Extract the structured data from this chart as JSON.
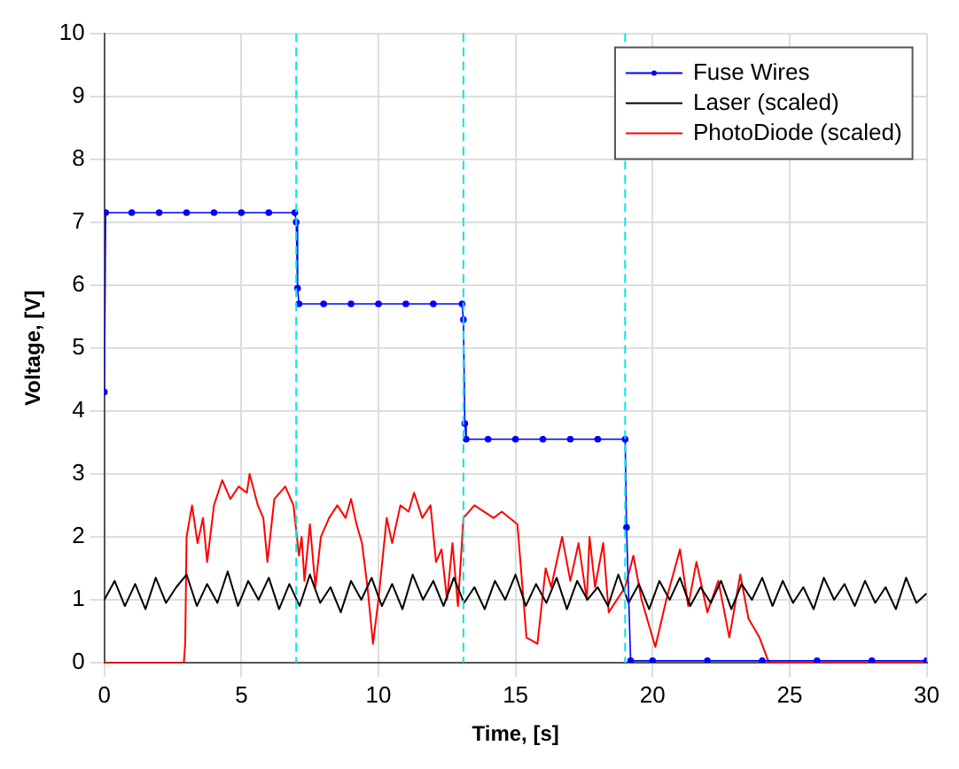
{
  "chart_data": {
    "type": "line",
    "xlabel": "Time, [s]",
    "ylabel": "Voltage, [V]",
    "xlim": [
      0,
      30
    ],
    "ylim": [
      0,
      10
    ],
    "xticks": [
      0,
      5,
      10,
      15,
      20,
      25,
      30
    ],
    "yticks": [
      0,
      1,
      2,
      3,
      4,
      5,
      6,
      7,
      8,
      9,
      10
    ],
    "grid": true,
    "legend": "top right",
    "line_style": "solid",
    "series": [
      {
        "name": "Fuse Wires",
        "color": "#0000ff",
        "marker": "circle",
        "x": [
          0,
          0.05,
          1,
          2,
          3,
          4,
          5,
          6,
          6.95,
          7.0,
          7.05,
          7.1,
          8,
          9,
          10,
          11,
          12,
          13.05,
          13.1,
          13.15,
          13.2,
          14,
          15,
          16,
          17,
          18,
          19.0,
          19.05,
          19.2,
          20,
          22,
          24,
          26,
          28,
          30
        ],
        "values": [
          4.3,
          7.15,
          7.15,
          7.15,
          7.15,
          7.15,
          7.15,
          7.15,
          7.15,
          7.0,
          5.95,
          5.7,
          5.7,
          5.7,
          5.7,
          5.7,
          5.7,
          5.7,
          5.45,
          3.8,
          3.55,
          3.55,
          3.55,
          3.55,
          3.55,
          3.55,
          3.55,
          2.15,
          0.03,
          0.03,
          0.03,
          0.03,
          0.03,
          0.03,
          0.03
        ]
      },
      {
        "name": "Laser (scaled)",
        "color": "#000000",
        "marker": "none",
        "x": [
          0,
          0.375,
          0.75,
          1.125,
          1.5,
          1.875,
          2.25,
          2.625,
          3,
          3.375,
          3.75,
          4.125,
          4.5,
          4.875,
          5.25,
          5.625,
          6,
          6.375,
          6.75,
          7.125,
          7.5,
          7.875,
          8.25,
          8.625,
          9,
          9.375,
          9.75,
          10.125,
          10.5,
          10.875,
          11.25,
          11.625,
          12,
          12.375,
          12.75,
          13.125,
          13.5,
          13.875,
          14.25,
          14.625,
          15,
          15.375,
          15.75,
          16.125,
          16.5,
          16.875,
          17.25,
          17.625,
          18,
          18.375,
          18.75,
          19.125,
          19.5,
          19.875,
          20.25,
          20.625,
          21,
          21.375,
          21.75,
          22.125,
          22.5,
          22.875,
          23.25,
          23.625,
          24,
          24.375,
          24.75,
          25.125,
          25.5,
          25.875,
          26.25,
          26.625,
          27,
          27.375,
          27.75,
          28.125,
          28.5,
          28.875,
          29.25,
          29.625,
          30
        ],
        "values": [
          1.0,
          1.3,
          0.9,
          1.25,
          0.85,
          1.35,
          0.95,
          1.2,
          1.4,
          0.9,
          1.25,
          0.95,
          1.45,
          0.9,
          1.3,
          1.0,
          1.35,
          0.85,
          1.25,
          0.9,
          1.4,
          0.95,
          1.2,
          0.8,
          1.3,
          1.0,
          1.35,
          0.9,
          1.25,
          0.85,
          1.4,
          1.0,
          1.3,
          0.9,
          1.35,
          0.95,
          1.2,
          0.85,
          1.3,
          1.0,
          1.4,
          0.9,
          1.25,
          0.95,
          1.35,
          0.85,
          1.3,
          1.0,
          1.2,
          0.9,
          1.4,
          0.95,
          1.25,
          0.85,
          1.3,
          1.0,
          1.35,
          0.9,
          1.2,
          0.95,
          1.3,
          0.85,
          1.25,
          1.0,
          1.35,
          0.9,
          1.3,
          0.95,
          1.2,
          0.85,
          1.35,
          1.0,
          1.25,
          0.9,
          1.3,
          0.95,
          1.2,
          0.85,
          1.35,
          0.95,
          1.1
        ]
      },
      {
        "name": "PhotoDiode (scaled)",
        "color": "#ff0000",
        "marker": "none",
        "x": [
          0,
          2.9,
          2.95,
          3.0,
          3.2,
          3.4,
          3.6,
          3.75,
          4.0,
          4.3,
          4.6,
          4.9,
          5.2,
          5.3,
          5.6,
          5.8,
          5.95,
          6.2,
          6.6,
          6.9,
          7.1,
          7.2,
          7.3,
          7.5,
          7.7,
          7.9,
          8.2,
          8.5,
          8.8,
          9.0,
          9.2,
          9.4,
          9.6,
          9.8,
          10.0,
          10.3,
          10.5,
          10.8,
          11.1,
          11.3,
          11.6,
          11.9,
          12.1,
          12.3,
          12.5,
          12.7,
          12.9,
          13.1,
          13.5,
          14.2,
          14.5,
          15.07,
          15.4,
          15.8,
          16.1,
          16.3,
          16.7,
          17.0,
          17.3,
          17.6,
          17.7,
          17.9,
          18.2,
          18.4,
          19.0,
          19.3,
          19.6,
          20.1,
          20.5,
          21.0,
          21.3,
          21.6,
          22.0,
          22.4,
          22.8,
          23.2,
          23.5,
          23.9,
          24.2,
          24.3,
          30
        ],
        "values": [
          0,
          0,
          0.3,
          2.0,
          2.5,
          1.9,
          2.3,
          1.6,
          2.5,
          2.9,
          2.6,
          2.8,
          2.7,
          3.0,
          2.5,
          2.3,
          1.6,
          2.6,
          2.8,
          2.5,
          1.7,
          2.0,
          1.3,
          2.2,
          1.2,
          2.0,
          2.3,
          2.5,
          2.3,
          2.6,
          2.2,
          1.9,
          1.2,
          0.3,
          1.0,
          2.3,
          1.9,
          2.5,
          2.4,
          2.7,
          2.3,
          2.5,
          1.6,
          1.8,
          1.0,
          1.9,
          0.9,
          2.3,
          2.5,
          2.3,
          2.4,
          2.2,
          0.4,
          0.3,
          1.5,
          1.2,
          2.0,
          1.3,
          1.9,
          1.0,
          2.0,
          1.2,
          1.9,
          0.8,
          1.2,
          1.7,
          1.0,
          0.25,
          1.0,
          1.8,
          0.9,
          1.6,
          0.8,
          1.3,
          0.4,
          1.4,
          0.7,
          0.4,
          0.05,
          0,
          0
        ]
      }
    ],
    "ref_lines": [
      {
        "axis": "x",
        "value": 7.0,
        "color": "#00e5ee",
        "line_style": "dashed"
      },
      {
        "axis": "x",
        "value": 13.1,
        "color": "#00e5ee",
        "line_style": "dashed"
      },
      {
        "axis": "x",
        "value": 19.0,
        "color": "#00e5ee",
        "line_style": "dashed"
      }
    ]
  }
}
